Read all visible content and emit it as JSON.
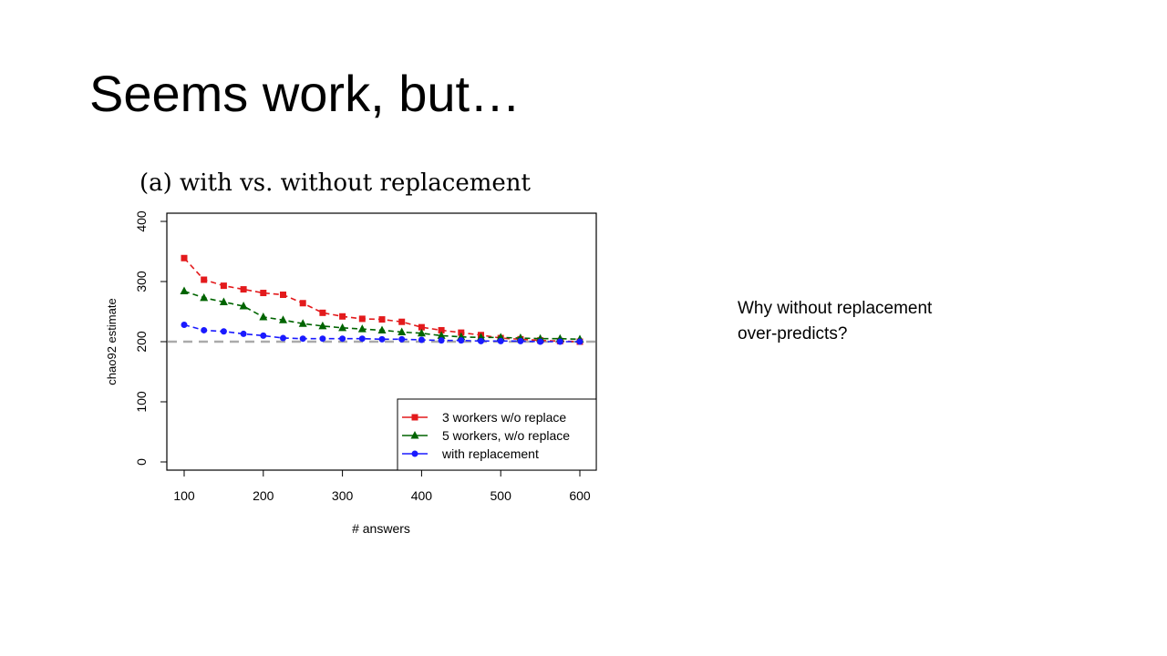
{
  "slide": {
    "title": "Seems work, but…",
    "note_lines": [
      "Why without replacement",
      "over-predicts?"
    ]
  },
  "chart_data": {
    "type": "line",
    "title": "(a) with vs. without replacement",
    "xlabel": "# answers",
    "ylabel": "chao92 estimate",
    "xlim": [
      100,
      600
    ],
    "ylim": [
      0,
      400
    ],
    "xticks": [
      100,
      200,
      300,
      400,
      500,
      600
    ],
    "yticks": [
      0,
      100,
      200,
      300,
      400
    ],
    "grid": false,
    "legend_position": "bottom-right",
    "reference_line": {
      "y": 200,
      "color": "#aaaaaa",
      "style": "dashed"
    },
    "x": [
      100,
      125,
      150,
      175,
      200,
      225,
      250,
      275,
      300,
      325,
      350,
      375,
      400,
      425,
      450,
      475,
      500,
      525,
      550,
      575,
      600
    ],
    "series": [
      {
        "name": "3 workers w/o replace",
        "color": "#e31a1c",
        "marker": "square",
        "values": [
          339,
          303,
          293,
          287,
          281,
          278,
          264,
          248,
          242,
          238,
          237,
          233,
          224,
          219,
          215,
          211,
          206,
          204,
          202,
          201,
          200
        ]
      },
      {
        "name": "5 workers, w/o replace",
        "color": "#006400",
        "marker": "triangle",
        "values": [
          284,
          273,
          266,
          259,
          241,
          236,
          230,
          226,
          223,
          221,
          219,
          216,
          214,
          210,
          208,
          207,
          207,
          206,
          205,
          205,
          204
        ]
      },
      {
        "name": "with replacement",
        "color": "#1a1aff",
        "marker": "circle",
        "values": [
          228,
          219,
          217,
          213,
          210,
          206,
          205,
          205,
          205,
          205,
          204,
          204,
          203,
          202,
          202,
          201,
          201,
          201,
          200,
          200,
          200
        ]
      }
    ]
  }
}
